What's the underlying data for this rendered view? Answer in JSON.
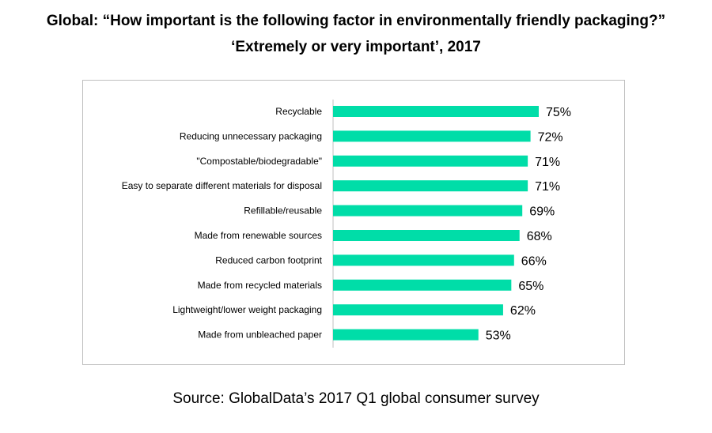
{
  "chart_data": {
    "type": "bar",
    "orientation": "horizontal",
    "title": "Global: “How important is the following factor in environmentally friendly packaging?”",
    "subtitle": "‘Extremely or very important’, 2017",
    "categories": [
      "Recyclable",
      "Reducing unnecessary packaging",
      "\"Compostable/biodegradable\"",
      "Easy to separate different materials for disposal",
      "Refillable/reusable",
      "Made from renewable sources",
      "Reduced carbon footprint",
      "Made from recycled materials",
      "Lightweight/lower weight packaging",
      "Made from unbleached paper"
    ],
    "values": [
      75,
      72,
      71,
      71,
      69,
      68,
      66,
      65,
      62,
      53
    ],
    "value_suffix": "%",
    "bar_color": "#00DDA8",
    "grid": false,
    "legend": "none",
    "source": "Source: GlobalData’s 2017 Q1 global consumer survey"
  }
}
